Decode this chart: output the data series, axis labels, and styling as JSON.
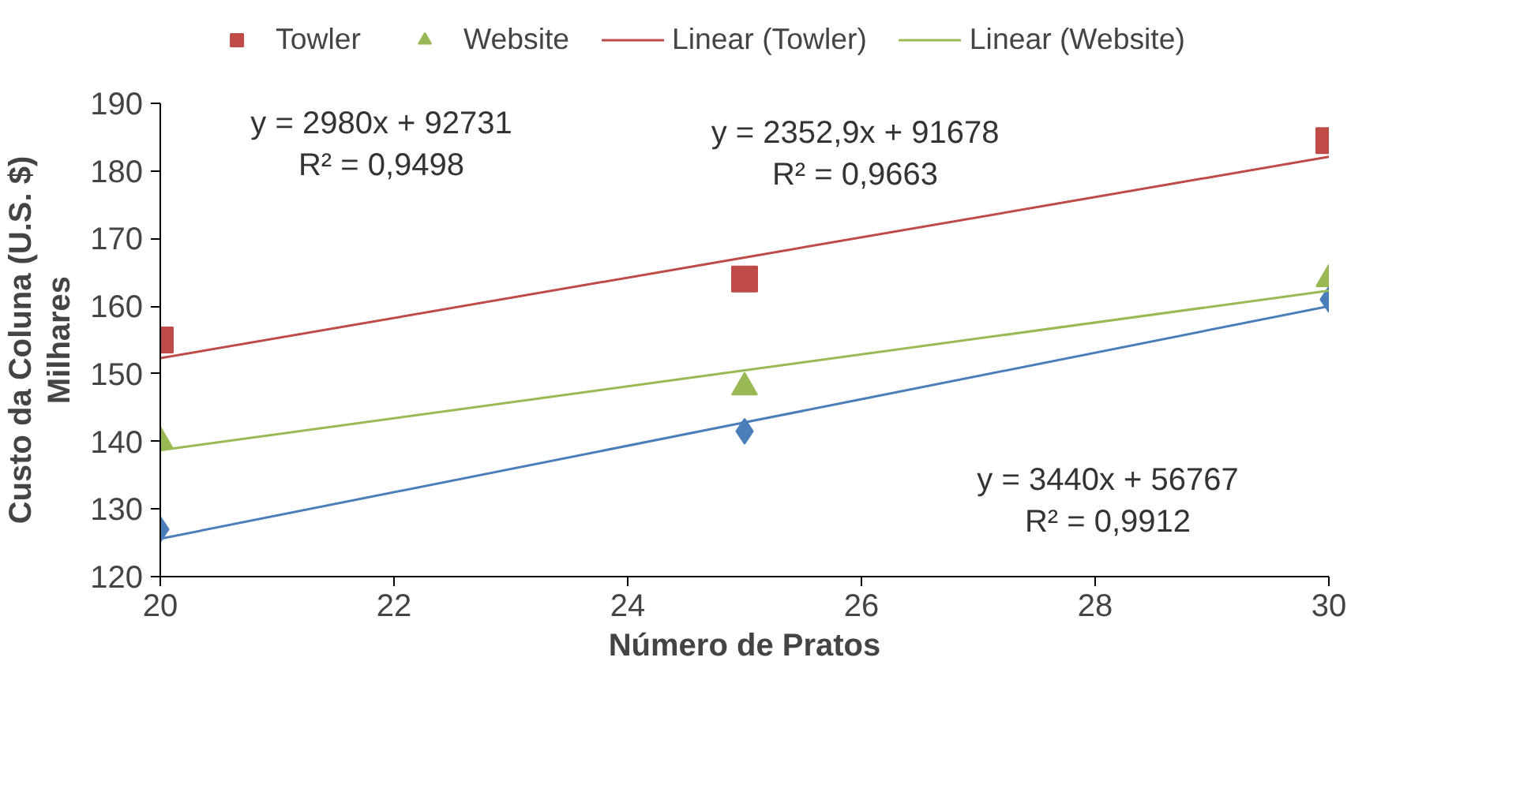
{
  "chart_data": {
    "type": "scatter",
    "xlabel": "Número de Pratos",
    "ylabel": "Custo da Coluna (U.S. $)",
    "annotations": [
      "Milhares",
      "y = 2980x + 92731\nR² = 0,9498",
      "y = 2352,9x + 91678\nR² = 0,9663",
      "y = 3440x + 56767\nR² = 0,9912"
    ],
    "x": [
      20,
      25,
      30
    ],
    "series": [
      {
        "color": "#4a7ebb",
        "marker": "diamond",
        "values": [
          127,
          141.5,
          161
        ]
      },
      {
        "name": "Towler",
        "color": "#be4b48",
        "marker": "square",
        "values": [
          155,
          164,
          184.5
        ]
      },
      {
        "name": "Website",
        "color": "#98b954",
        "marker": "triangle",
        "values": [
          140,
          148,
          164
        ]
      },
      {
        "type": "line",
        "color": "#4a7ebb",
        "values": [
          125.6,
          142.8,
          160
        ]
      },
      {
        "type": "line",
        "name": "Linear (Towler)",
        "color": "#be4b48",
        "values": [
          152.3,
          167.2,
          182.1
        ]
      },
      {
        "type": "line",
        "name": "Linear (Website)",
        "color": "#98b954",
        "values": [
          138.7,
          150.5,
          162.3
        ]
      }
    ],
    "xlim": [
      20,
      30
    ],
    "xticks": [
      20,
      22,
      24,
      26,
      28,
      30
    ],
    "ylim": [
      120,
      190
    ],
    "yticks": [
      120,
      130,
      140,
      150,
      160,
      170,
      180,
      190
    ],
    "grid": false,
    "legend": "top",
    "line_style": "solid"
  }
}
